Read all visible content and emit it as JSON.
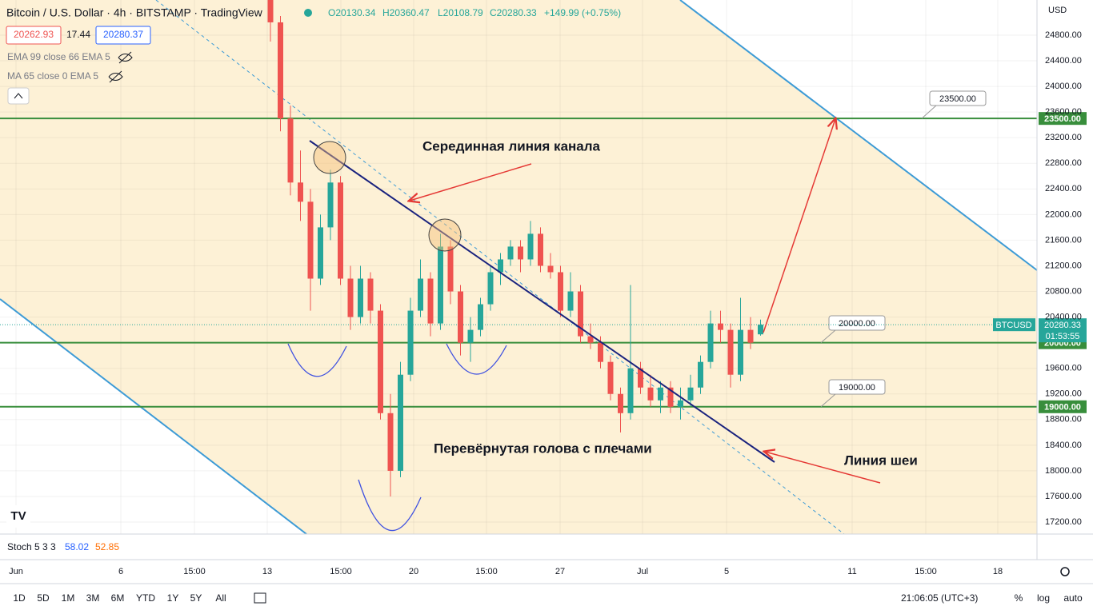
{
  "header": {
    "symbol": "Bitcoin / U.S. Dollar · 4h · BITSTAMP · TradingView",
    "open": "O20130.34",
    "high": "H20360.47",
    "low": "L20108.79",
    "close": "C20280.33",
    "change": "+149.99 (+0.75%)",
    "bid": "20262.93",
    "spread": "17.44",
    "ask": "20280.37",
    "indicators": [
      "EMA 99 close 66 EMA 5",
      "MA 65 close 0 EMA 5"
    ],
    "currency": "USD"
  },
  "chart_data": {
    "type": "candlestick",
    "candles": [
      [
        25400,
        25600,
        24700,
        25000
      ],
      [
        25000,
        25100,
        23300,
        23500
      ],
      [
        23500,
        23700,
        22300,
        22500
      ],
      [
        22500,
        23000,
        21900,
        22200
      ],
      [
        22200,
        22400,
        20500,
        21000
      ],
      [
        21000,
        22000,
        20900,
        21800
      ],
      [
        21800,
        22700,
        21600,
        22500
      ],
      [
        22500,
        22600,
        20900,
        21000
      ],
      [
        21000,
        21200,
        20200,
        20400
      ],
      [
        20400,
        21200,
        20300,
        21000
      ],
      [
        21000,
        21100,
        20300,
        20500
      ],
      [
        20500,
        20600,
        18800,
        18900
      ],
      [
        18900,
        19200,
        17600,
        18000
      ],
      [
        18000,
        19700,
        17900,
        19500
      ],
      [
        19500,
        20700,
        19400,
        20500
      ],
      [
        20500,
        21300,
        20400,
        21000
      ],
      [
        21000,
        21100,
        20100,
        20300
      ],
      [
        20300,
        21700,
        20200,
        21500
      ],
      [
        21500,
        21600,
        20600,
        20800
      ],
      [
        20800,
        20900,
        19800,
        20000
      ],
      [
        20000,
        20400,
        19700,
        20200
      ],
      [
        20200,
        20700,
        20100,
        20600
      ],
      [
        20600,
        21200,
        20500,
        21100
      ],
      [
        21100,
        21400,
        20900,
        21300
      ],
      [
        21300,
        21600,
        21200,
        21500
      ],
      [
        21500,
        21600,
        21100,
        21300
      ],
      [
        21300,
        21900,
        21200,
        21700
      ],
      [
        21700,
        21800,
        21100,
        21200
      ],
      [
        21200,
        21400,
        21000,
        21100
      ],
      [
        21100,
        21200,
        20400,
        20500
      ],
      [
        20500,
        21100,
        20400,
        20800
      ],
      [
        20800,
        20900,
        20000,
        20100
      ],
      [
        20100,
        20300,
        19900,
        20000
      ],
      [
        20000,
        20100,
        19600,
        19700
      ],
      [
        19700,
        19800,
        19100,
        19200
      ],
      [
        19200,
        19300,
        18600,
        18900
      ],
      [
        18900,
        20900,
        18800,
        19600
      ],
      [
        19600,
        19700,
        19200,
        19300
      ],
      [
        19300,
        19500,
        19000,
        19100
      ],
      [
        19100,
        19400,
        18900,
        19300
      ],
      [
        19300,
        19400,
        18900,
        19000
      ],
      [
        19000,
        19300,
        18800,
        19100
      ],
      [
        19100,
        19500,
        19000,
        19300
      ],
      [
        19300,
        19800,
        19200,
        19700
      ],
      [
        19700,
        20500,
        19600,
        20300
      ],
      [
        20300,
        20500,
        20000,
        20200
      ],
      [
        20200,
        20300,
        19300,
        19500
      ],
      [
        19500,
        20700,
        19400,
        20200
      ],
      [
        20200,
        20400,
        19900,
        20000
      ],
      [
        20130.34,
        20360.47,
        20108.79,
        20280.33
      ]
    ],
    "ylim": [
      17013,
      25349
    ],
    "yticks": [
      {
        "value": 24800,
        "label": "24800.00"
      },
      {
        "value": 24400,
        "label": "24400.00"
      },
      {
        "value": 24000,
        "label": "24000.00"
      },
      {
        "value": 23600,
        "label": "23600.00"
      },
      {
        "value": 23200,
        "label": "23200.00"
      },
      {
        "value": 22800,
        "label": "22800.00"
      },
      {
        "value": 22400,
        "label": "22400.00"
      },
      {
        "value": 22000,
        "label": "22000.00"
      },
      {
        "value": 21600,
        "label": "21600.00"
      },
      {
        "value": 21200,
        "label": "21200.00"
      },
      {
        "value": 20800,
        "label": "20800.00"
      },
      {
        "value": 20400,
        "label": "20400.00"
      },
      {
        "value": 19600,
        "label": "19600.00"
      },
      {
        "value": 19200,
        "label": "19200.00"
      },
      {
        "value": 18800,
        "label": "18800.00"
      },
      {
        "value": 18400,
        "label": "18400.00"
      },
      {
        "value": 18000,
        "label": "18000.00"
      },
      {
        "value": 17600,
        "label": "17600.00"
      },
      {
        "value": 17200,
        "label": "17200.00"
      }
    ],
    "xticks": [
      "Jun",
      "6",
      "15:00",
      "13",
      "15:00",
      "20",
      "15:00",
      "27",
      "Jul",
      "5",
      "11",
      "15:00",
      "18"
    ],
    "levels": [
      {
        "value": 23500,
        "label": "23500.00"
      },
      {
        "value": 20000,
        "label": "20000.00"
      },
      {
        "value": 19000,
        "label": "19000.00"
      }
    ],
    "symbol_tag": "BTCUSD",
    "last_price": 20280.33,
    "countdown": "01:53:55",
    "up_color": "#26a69a",
    "down_color": "#ef5350",
    "level_color": "#388e3c",
    "annotations": [
      "Серединная линия канала",
      "Перевёрнутая голова с плечами",
      "Линия шеи"
    ]
  },
  "stoch": {
    "name": "Stoch 5 3 3",
    "k": "58.02",
    "d": "52.85"
  },
  "toolbar": {
    "ranges": [
      "1D",
      "5D",
      "1M",
      "3M",
      "6M",
      "YTD",
      "1Y",
      "5Y",
      "All"
    ],
    "clock": "21:06:05 (UTC+3)",
    "options": [
      "%",
      "log",
      "auto"
    ]
  }
}
